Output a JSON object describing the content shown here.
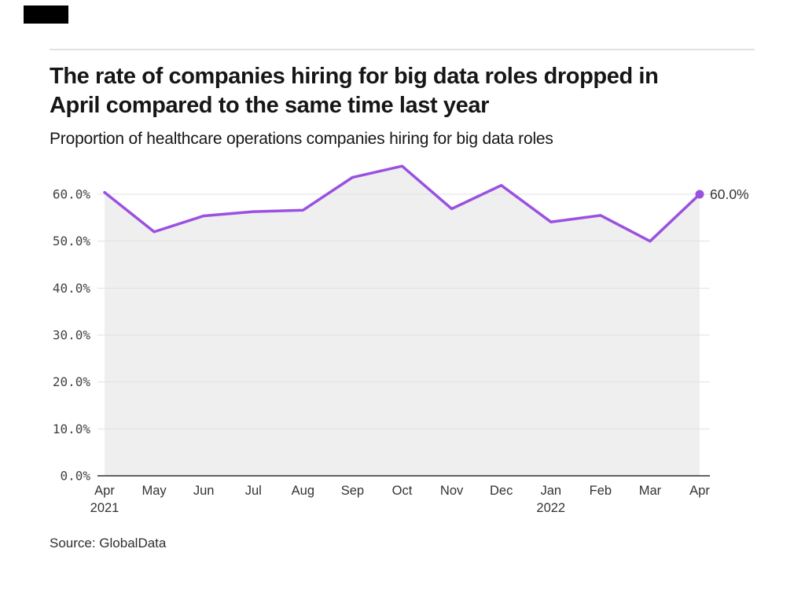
{
  "page": {
    "title_line_1": "The rate of companies hiring for big data roles dropped in",
    "title_line_2": "April compared to the same time last year",
    "subtitle": "Proportion of healthcare operations companies hiring for big data roles",
    "source": "Source: GlobalData"
  },
  "colors": {
    "line": "#9b51e0",
    "area_fill": "#efefef",
    "gridline": "#e1e1e1",
    "axis": "#2f2f2f",
    "logo_block": "#000000"
  },
  "chart_data": {
    "type": "area",
    "title": "The rate of companies hiring for big data roles dropped in April compared to the same time last year",
    "subtitle": "Proportion of healthcare operations companies hiring for big data roles",
    "xlabel": "",
    "ylabel": "",
    "x": [
      "Apr 2021",
      "May",
      "Jun",
      "Jul",
      "Aug",
      "Sep",
      "Oct",
      "Nov",
      "Dec",
      "Jan 2022",
      "Feb",
      "Mar",
      "Apr"
    ],
    "categories": [
      "Apr",
      "May",
      "Jun",
      "Jul",
      "Aug",
      "Sep",
      "Oct",
      "Nov",
      "Dec",
      "Jan",
      "Feb",
      "Mar",
      "Apr"
    ],
    "year_labels": [
      {
        "index": 0,
        "label": "2021"
      },
      {
        "index": 9,
        "label": "2022"
      }
    ],
    "values": [
      60.4,
      52.0,
      55.4,
      56.3,
      56.6,
      63.6,
      66.0,
      56.9,
      61.9,
      54.1,
      55.5,
      50.0,
      60.0
    ],
    "y_ticks": [
      "0.0%",
      "10.0%",
      "20.0%",
      "30.0%",
      "40.0%",
      "50.0%",
      "60.0%"
    ],
    "y_tick_values": [
      0,
      10,
      20,
      30,
      40,
      50,
      60
    ],
    "ylim": [
      0,
      66
    ],
    "grid": true,
    "legend": "none",
    "end_label": "60.0%"
  }
}
